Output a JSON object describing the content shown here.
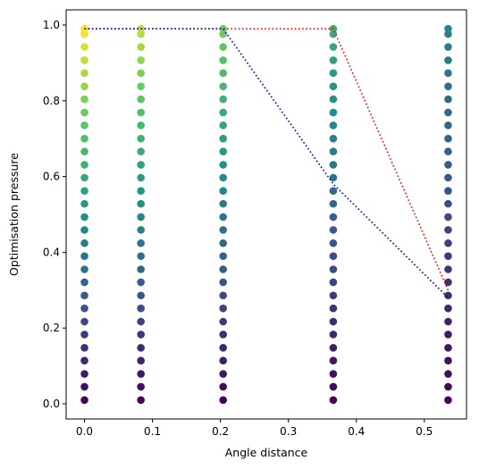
{
  "chart_data": {
    "type": "scatter",
    "title": "",
    "xlabel": "Angle distance",
    "ylabel": "Optimisation pressure",
    "xlim": [
      -0.027,
      0.562
    ],
    "ylim": [
      -0.04,
      1.04
    ],
    "x_ticks": [
      0.0,
      0.1,
      0.2,
      0.3,
      0.4,
      0.5
    ],
    "x_tick_labels": [
      "0.0",
      "0.1",
      "0.2",
      "0.3",
      "0.4",
      "0.5"
    ],
    "y_ticks": [
      0.0,
      0.2,
      0.4,
      0.6,
      0.8,
      1.0
    ],
    "y_tick_labels": [
      "0.0",
      "0.2",
      "0.4",
      "0.6",
      "0.8",
      "1.0"
    ],
    "grid": false,
    "colormap": "viridis",
    "scatter_x": [
      0.0,
      0.083,
      0.204,
      0.366,
      0.535
    ],
    "scatter_y": [
      0.01,
      0.045,
      0.079,
      0.114,
      0.148,
      0.183,
      0.217,
      0.252,
      0.286,
      0.321,
      0.355,
      0.39,
      0.424,
      0.459,
      0.493,
      0.528,
      0.562,
      0.597,
      0.631,
      0.666,
      0.7,
      0.735,
      0.769,
      0.804,
      0.838,
      0.873,
      0.907,
      0.942,
      0.976,
      0.99
    ],
    "color_value_rule": "color = y * (1 - 0.55 * x / 0.535)",
    "lines": [
      {
        "color": "#ff0000",
        "style": "dotted",
        "x": [
          0.0,
          0.204,
          0.366,
          0.535
        ],
        "y": [
          0.99,
          0.99,
          0.99,
          0.3
        ]
      },
      {
        "color": "#0000bb",
        "style": "dotted",
        "x": [
          0.0,
          0.204,
          0.366,
          0.535
        ],
        "y": [
          0.99,
          0.99,
          0.58,
          0.28
        ]
      }
    ]
  }
}
